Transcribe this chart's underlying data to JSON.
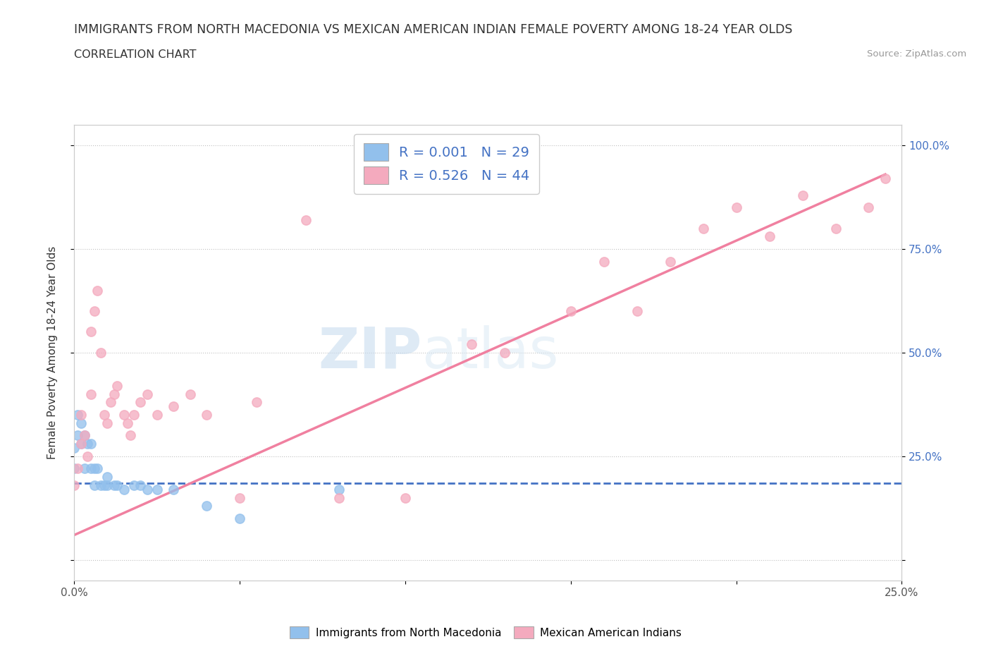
{
  "title": "IMMIGRANTS FROM NORTH MACEDONIA VS MEXICAN AMERICAN INDIAN FEMALE POVERTY AMONG 18-24 YEAR OLDS",
  "subtitle": "CORRELATION CHART",
  "source": "Source: ZipAtlas.com",
  "ylabel": "Female Poverty Among 18-24 Year Olds",
  "xlim": [
    0.0,
    0.25
  ],
  "ylim": [
    -0.05,
    1.05
  ],
  "legend_r1": "R = 0.001",
  "legend_n1": "N = 29",
  "legend_r2": "R = 0.526",
  "legend_n2": "N = 44",
  "color_blue": "#92C0EC",
  "color_pink": "#F4AABE",
  "color_line_blue": "#4472C4",
  "color_line_pink": "#F080A0",
  "watermark_zip": "ZIP",
  "watermark_atlas": "atlas",
  "blue_x": [
    0.0,
    0.0,
    0.001,
    0.001,
    0.002,
    0.002,
    0.003,
    0.003,
    0.004,
    0.005,
    0.005,
    0.006,
    0.006,
    0.007,
    0.008,
    0.009,
    0.01,
    0.01,
    0.012,
    0.013,
    0.015,
    0.018,
    0.02,
    0.022,
    0.025,
    0.03,
    0.04,
    0.05,
    0.08
  ],
  "blue_y": [
    0.22,
    0.27,
    0.3,
    0.35,
    0.28,
    0.33,
    0.22,
    0.3,
    0.28,
    0.22,
    0.28,
    0.22,
    0.18,
    0.22,
    0.18,
    0.18,
    0.18,
    0.2,
    0.18,
    0.18,
    0.17,
    0.18,
    0.18,
    0.17,
    0.17,
    0.17,
    0.13,
    0.1,
    0.17
  ],
  "pink_x": [
    0.0,
    0.001,
    0.002,
    0.002,
    0.003,
    0.004,
    0.005,
    0.005,
    0.006,
    0.007,
    0.008,
    0.009,
    0.01,
    0.011,
    0.012,
    0.013,
    0.015,
    0.016,
    0.017,
    0.018,
    0.02,
    0.022,
    0.025,
    0.03,
    0.035,
    0.04,
    0.05,
    0.055,
    0.07,
    0.08,
    0.1,
    0.12,
    0.13,
    0.15,
    0.16,
    0.17,
    0.18,
    0.19,
    0.2,
    0.21,
    0.22,
    0.23,
    0.24,
    0.245
  ],
  "pink_y": [
    0.18,
    0.22,
    0.28,
    0.35,
    0.3,
    0.25,
    0.4,
    0.55,
    0.6,
    0.65,
    0.5,
    0.35,
    0.33,
    0.38,
    0.4,
    0.42,
    0.35,
    0.33,
    0.3,
    0.35,
    0.38,
    0.4,
    0.35,
    0.37,
    0.4,
    0.35,
    0.15,
    0.38,
    0.82,
    0.15,
    0.15,
    0.52,
    0.5,
    0.6,
    0.72,
    0.6,
    0.72,
    0.8,
    0.85,
    0.78,
    0.88,
    0.8,
    0.85,
    0.92
  ],
  "blue_line_y_at_0": 0.185,
  "blue_line_y_at_025": 0.185,
  "pink_line_x0": 0.0,
  "pink_line_y0": 0.06,
  "pink_line_x1": 0.245,
  "pink_line_y1": 0.93
}
